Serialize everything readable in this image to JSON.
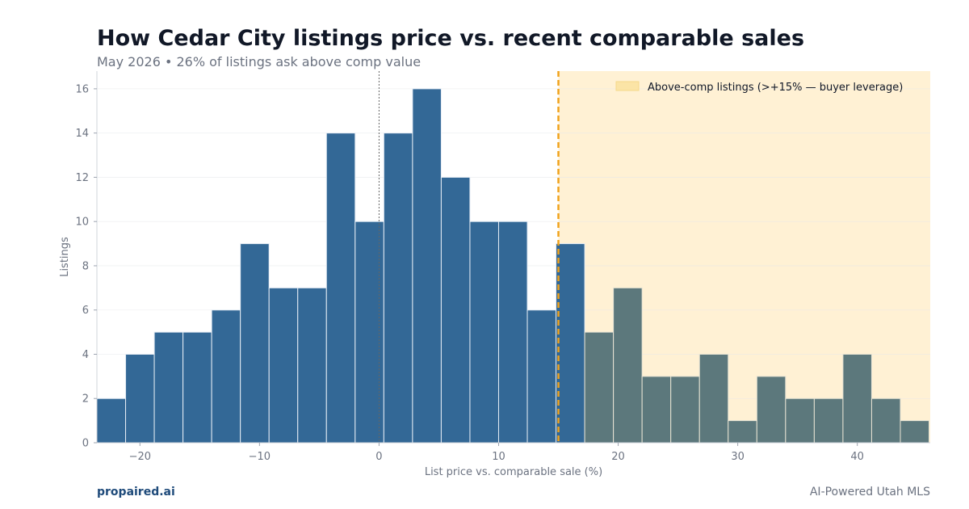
{
  "header": {
    "title": "How Cedar City listings price vs. recent comparable sales",
    "subtitle": "May 2026 • 26% of listings ask above comp value"
  },
  "footer": {
    "brand": "propaired.ai",
    "tagline": "AI-Powered Utah MLS"
  },
  "colors": {
    "below_bar": "#336896",
    "above_bar": "#5c787c",
    "highlight_region": "#fff1d4",
    "threshold_line": "#f0a21c",
    "zero_line": "#666666"
  },
  "chart_data": {
    "type": "bar",
    "title": "How Cedar City listings price vs. recent comparable sales",
    "subtitle": "May 2026 • 26% of listings ask above comp value",
    "xlabel": "List price vs. comparable sale (%)",
    "ylabel": "Listings",
    "xlim": [
      -23.6,
      46.1
    ],
    "ylim": [
      0,
      16.8
    ],
    "x_ticks": [
      -20,
      -10,
      0,
      10,
      20,
      30,
      40
    ],
    "x_tick_labels": [
      "−20",
      "−10",
      "0",
      "10",
      "20",
      "30",
      "40"
    ],
    "y_ticks": [
      0,
      2,
      4,
      6,
      8,
      10,
      12,
      14,
      16
    ],
    "y_tick_labels": [
      "0",
      "2",
      "4",
      "6",
      "8",
      "10",
      "12",
      "14",
      "16"
    ],
    "grid": true,
    "bin_width": 2.4,
    "bin_starts": [
      -23.6,
      -21.2,
      -18.8,
      -16.4,
      -14.0,
      -11.6,
      -9.2,
      -6.8,
      -4.4,
      -2.0,
      0.4,
      2.8,
      5.2,
      7.6,
      10.0,
      12.4,
      14.8,
      17.2,
      19.6,
      22.0,
      24.4,
      26.8,
      29.2,
      31.6,
      34.0,
      36.4,
      38.8,
      41.2,
      43.6
    ],
    "values": [
      2,
      4,
      5,
      5,
      6,
      9,
      7,
      7,
      14,
      10,
      14,
      16,
      12,
      10,
      10,
      6,
      9,
      5,
      7,
      3,
      3,
      4,
      1,
      3,
      2,
      2,
      4,
      2,
      1
    ],
    "threshold": 15,
    "reference_line": 0,
    "highlight_range": [
      15,
      46.1
    ],
    "legend": {
      "label": "Above-comp listings (>+15% — buyer leverage)",
      "placement": "top-right"
    }
  }
}
